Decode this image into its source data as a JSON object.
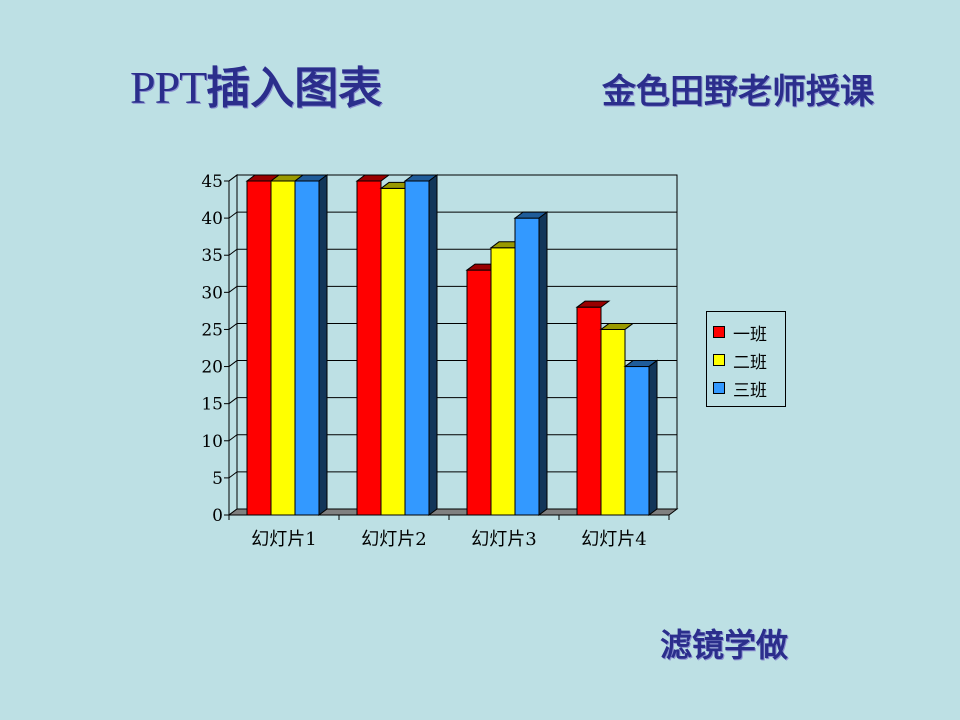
{
  "slide": {
    "title_ppt": "PPT",
    "title_rest": "插入图表",
    "subtitle": "金色田野老师授课",
    "footer": "滤镜学做"
  },
  "chart_data": {
    "type": "bar",
    "categories": [
      "幻灯片1",
      "幻灯片2",
      "幻灯片3",
      "幻灯片4"
    ],
    "series": [
      {
        "name": "一班",
        "values": [
          45,
          45,
          33,
          28
        ],
        "color": "#ff0000"
      },
      {
        "name": "二班",
        "values": [
          45,
          44,
          36,
          25
        ],
        "color": "#ffff00"
      },
      {
        "name": "三班",
        "values": [
          45,
          45,
          40,
          20
        ],
        "color": "#3399ff"
      }
    ],
    "ylim": [
      0,
      45
    ],
    "yticks": [
      0,
      5,
      10,
      15,
      20,
      25,
      30,
      35,
      40,
      45
    ],
    "grid": true,
    "legend_position": "right",
    "style": "3d-clustered-column"
  }
}
